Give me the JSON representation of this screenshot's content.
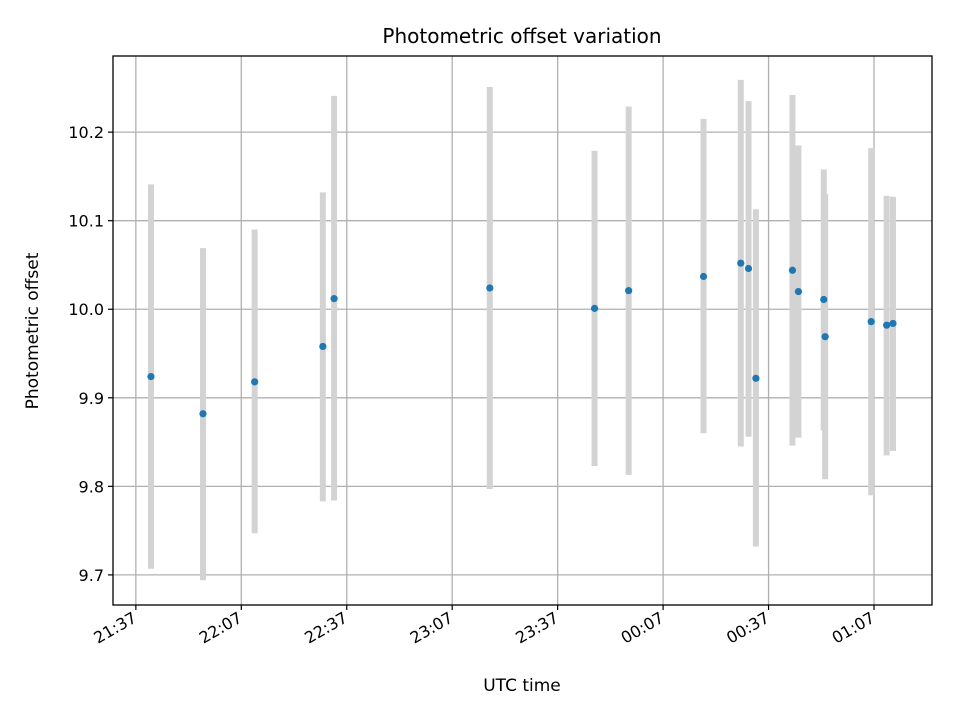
{
  "chart_data": {
    "type": "scatter",
    "title": "Photometric offset variation",
    "xlabel": "UTC time",
    "ylabel": "Photometric offset",
    "x_tick_labels": [
      "21:37",
      "22:07",
      "22:37",
      "23:07",
      "23:37",
      "00:07",
      "00:37",
      "01:07"
    ],
    "y_tick_labels": [
      "9.7",
      "9.8",
      "9.9",
      "10.0",
      "10.1",
      "10.2"
    ],
    "x_ticks_minutes": [
      0,
      30,
      60,
      90,
      120,
      150,
      180,
      210
    ],
    "y_ticks": [
      9.7,
      9.8,
      9.9,
      10.0,
      10.1,
      10.2
    ],
    "xlim_minutes": [
      -6.5,
      226.5
    ],
    "ylim": [
      9.666,
      10.286
    ],
    "grid": true,
    "point_color": "#1f77b4",
    "errorbar_color": "#d3d3d3",
    "points": [
      {
        "x": 4.3,
        "y": 9.924,
        "ylow": 9.707,
        "yhigh": 10.141
      },
      {
        "x": 19.1,
        "y": 9.882,
        "ylow": 9.694,
        "yhigh": 10.069
      },
      {
        "x": 33.8,
        "y": 9.918,
        "ylow": 9.747,
        "yhigh": 10.09
      },
      {
        "x": 53.2,
        "y": 9.958,
        "ylow": 9.783,
        "yhigh": 10.132
      },
      {
        "x": 56.4,
        "y": 10.012,
        "ylow": 9.784,
        "yhigh": 10.241
      },
      {
        "x": 100.7,
        "y": 10.024,
        "ylow": 9.797,
        "yhigh": 10.251
      },
      {
        "x": 130.5,
        "y": 10.001,
        "ylow": 9.823,
        "yhigh": 10.179
      },
      {
        "x": 140.2,
        "y": 10.021,
        "ylow": 9.813,
        "yhigh": 10.229
      },
      {
        "x": 161.5,
        "y": 10.037,
        "ylow": 9.86,
        "yhigh": 10.215
      },
      {
        "x": 172.1,
        "y": 10.052,
        "ylow": 9.845,
        "yhigh": 10.259
      },
      {
        "x": 174.3,
        "y": 10.046,
        "ylow": 9.856,
        "yhigh": 10.235
      },
      {
        "x": 176.4,
        "y": 9.922,
        "ylow": 9.732,
        "yhigh": 10.113
      },
      {
        "x": 186.8,
        "y": 10.044,
        "ylow": 9.846,
        "yhigh": 10.242
      },
      {
        "x": 188.5,
        "y": 10.02,
        "ylow": 9.855,
        "yhigh": 10.185
      },
      {
        "x": 195.7,
        "y": 10.011,
        "ylow": 9.863,
        "yhigh": 10.158
      },
      {
        "x": 196.1,
        "y": 9.969,
        "ylow": 9.808,
        "yhigh": 10.13
      },
      {
        "x": 209.2,
        "y": 9.986,
        "ylow": 9.79,
        "yhigh": 10.182
      },
      {
        "x": 213.6,
        "y": 9.982,
        "ylow": 9.835,
        "yhigh": 10.128
      },
      {
        "x": 215.4,
        "y": 9.984,
        "ylow": 9.84,
        "yhigh": 10.127
      }
    ]
  }
}
